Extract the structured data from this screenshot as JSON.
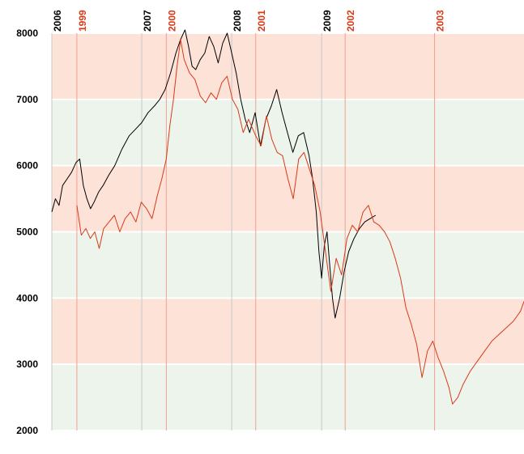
{
  "chart_data": {
    "type": "line",
    "ylim": [
      2000,
      8000
    ],
    "yticks": [
      2000,
      3000,
      4000,
      5000,
      6000,
      7000,
      8000
    ],
    "band_colors": [
      "#edf4eb",
      "#fde2d8"
    ],
    "xlim": [
      2006.0,
      2011.25
    ],
    "xticks": [
      {
        "value": 2006,
        "label": "2006"
      },
      {
        "value": 2007,
        "label": "2007"
      },
      {
        "value": 2008,
        "label": "2008"
      },
      {
        "value": 2009,
        "label": "2009"
      }
    ],
    "x2lim": [
      1998.72,
      2004.0
    ],
    "x2ticks": [
      {
        "value": 1999,
        "label": "1999"
      },
      {
        "value": 2000,
        "label": "2000"
      },
      {
        "value": 2001,
        "label": "2001"
      },
      {
        "value": 2002,
        "label": "2002"
      },
      {
        "value": 2003,
        "label": "2003"
      }
    ],
    "series": [
      {
        "color": "#000000",
        "axis": "x",
        "x": [
          2006.0,
          2006.04,
          2006.08,
          2006.12,
          2006.17,
          2006.22,
          2006.27,
          2006.31,
          2006.35,
          2006.39,
          2006.43,
          2006.47,
          2006.52,
          2006.57,
          2006.63,
          2006.7,
          2006.78,
          2006.86,
          2006.93,
          2007.0,
          2007.07,
          2007.14,
          2007.2,
          2007.26,
          2007.32,
          2007.38,
          2007.43,
          2007.48,
          2007.52,
          2007.56,
          2007.6,
          2007.65,
          2007.7,
          2007.75,
          2007.8,
          2007.85,
          2007.9,
          2007.95,
          2008.0,
          2008.05,
          2008.1,
          2008.15,
          2008.2,
          2008.26,
          2008.32,
          2008.38,
          2008.44,
          2008.5,
          2008.56,
          2008.62,
          2008.68,
          2008.74,
          2008.8,
          2008.86,
          2008.9,
          2008.94,
          2008.97,
          2009.0,
          2009.03,
          2009.06,
          2009.09,
          2009.12,
          2009.15,
          2009.2,
          2009.25,
          2009.3,
          2009.36,
          2009.42,
          2009.48,
          2009.54,
          2009.6
        ],
        "values": [
          5300,
          5500,
          5400,
          5700,
          5800,
          5900,
          6050,
          6100,
          5700,
          5500,
          5350,
          5450,
          5600,
          5700,
          5850,
          6000,
          6250,
          6450,
          6550,
          6650,
          6800,
          6900,
          7000,
          7150,
          7400,
          7700,
          7900,
          8050,
          7800,
          7500,
          7450,
          7600,
          7700,
          7950,
          7800,
          7550,
          7850,
          8000,
          7700,
          7400,
          7000,
          6700,
          6500,
          6800,
          6300,
          6700,
          6900,
          7150,
          6800,
          6500,
          6200,
          6450,
          6500,
          6150,
          5800,
          5300,
          4700,
          4300,
          4800,
          5000,
          4500,
          4000,
          3700,
          4000,
          4400,
          4700,
          4900,
          5050,
          5150,
          5200,
          5250
        ]
      },
      {
        "color": "#d93a1a",
        "axis": "x2",
        "x": [
          1999.0,
          1999.05,
          1999.1,
          1999.15,
          1999.2,
          1999.25,
          1999.3,
          1999.36,
          1999.42,
          1999.48,
          1999.54,
          1999.6,
          1999.66,
          1999.72,
          1999.78,
          1999.84,
          1999.9,
          1999.95,
          2000.0,
          2000.04,
          2000.08,
          2000.12,
          2000.16,
          2000.2,
          2000.26,
          2000.32,
          2000.38,
          2000.44,
          2000.5,
          2000.56,
          2000.62,
          2000.68,
          2000.74,
          2000.8,
          2000.86,
          2000.92,
          2001.0,
          2001.06,
          2001.12,
          2001.18,
          2001.24,
          2001.3,
          2001.36,
          2001.42,
          2001.48,
          2001.54,
          2001.6,
          2001.66,
          2001.72,
          2001.78,
          2001.84,
          2001.9,
          2001.96,
          2002.02,
          2002.08,
          2002.14,
          2002.2,
          2002.26,
          2002.32,
          2002.38,
          2002.44,
          2002.5,
          2002.56,
          2002.62,
          2002.68,
          2002.74,
          2002.8,
          2002.86,
          2002.92,
          2002.98,
          2003.04,
          2003.1,
          2003.16,
          2003.2,
          2003.26,
          2003.32,
          2003.4,
          2003.48,
          2003.56,
          2003.64,
          2003.72,
          2003.8,
          2003.88,
          2003.96,
          2004.0
        ],
        "values": [
          5400,
          4950,
          5050,
          4900,
          5000,
          4750,
          5050,
          5150,
          5250,
          5000,
          5200,
          5300,
          5150,
          5450,
          5350,
          5200,
          5550,
          5800,
          6100,
          6600,
          7000,
          7500,
          7900,
          7600,
          7400,
          7300,
          7050,
          6950,
          7100,
          7000,
          7250,
          7350,
          7000,
          6850,
          6500,
          6700,
          6450,
          6300,
          6750,
          6400,
          6200,
          6150,
          5800,
          5500,
          6100,
          6200,
          5950,
          5700,
          5300,
          4700,
          4100,
          4600,
          4350,
          4900,
          5100,
          5000,
          5300,
          5400,
          5150,
          5100,
          5000,
          4850,
          4600,
          4300,
          3850,
          3600,
          3300,
          2800,
          3200,
          3350,
          3100,
          2900,
          2650,
          2400,
          2500,
          2700,
          2900,
          3050,
          3200,
          3350,
          3450,
          3550,
          3650,
          3800,
          3950
        ]
      }
    ]
  }
}
